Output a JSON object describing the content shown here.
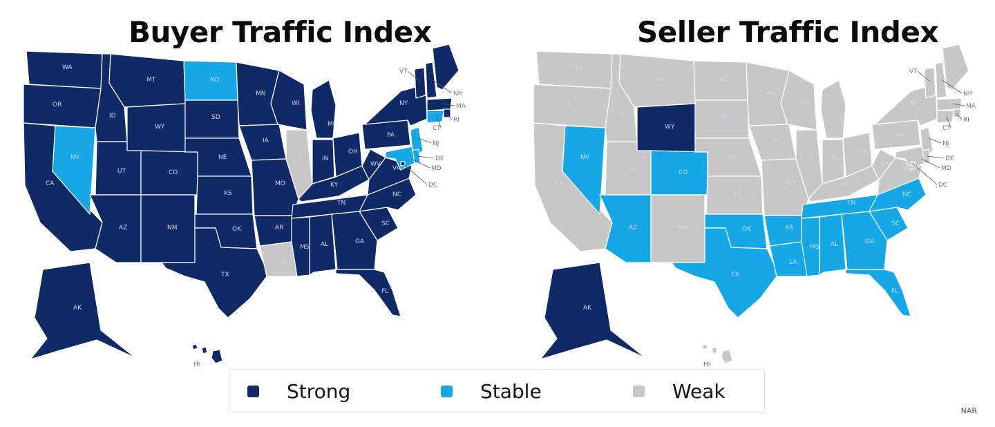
{
  "maps": [
    {
      "title": "Buyer Traffic Index",
      "states": {
        "WA": "strong",
        "OR": "strong",
        "CA": "strong",
        "ID": "strong",
        "NV": "stable",
        "MT": "strong",
        "WY": "strong",
        "UT": "strong",
        "AZ": "strong",
        "CO": "strong",
        "NM": "strong",
        "ND": "stable",
        "SD": "strong",
        "NE": "strong",
        "KS": "strong",
        "OK": "strong",
        "TX": "strong",
        "MN": "strong",
        "IA": "strong",
        "MO": "strong",
        "AR": "strong",
        "LA": "weak",
        "WI": "strong",
        "IL": "weak",
        "MI": "strong",
        "IN": "strong",
        "OH": "strong",
        "KY": "strong",
        "TN": "strong",
        "MS": "strong",
        "AL": "strong",
        "GA": "strong",
        "FL": "strong",
        "SC": "strong",
        "NC": "strong",
        "VA": "strong",
        "WV": "strong",
        "PA": "strong",
        "NY": "strong",
        "VT": "strong",
        "NH": "strong",
        "ME": "strong",
        "MA": "strong",
        "RI": "strong",
        "CT": "stable",
        "NJ": "stable",
        "DE": "stable",
        "MD": "stable",
        "DC": "strong",
        "AK": "strong",
        "HI": "strong"
      }
    },
    {
      "title": "Seller Traffic Index",
      "states": {
        "WA": "weak",
        "OR": "weak",
        "CA": "weak",
        "ID": "weak",
        "NV": "stable",
        "MT": "weak",
        "WY": "strong",
        "UT": "weak",
        "AZ": "stable",
        "CO": "stable",
        "NM": "weak",
        "ND": "weak",
        "SD": "weak",
        "NE": "weak",
        "KS": "weak",
        "OK": "stable",
        "TX": "stable",
        "MN": "weak",
        "IA": "weak",
        "MO": "weak",
        "AR": "stable",
        "LA": "stable",
        "WI": "weak",
        "IL": "weak",
        "MI": "weak",
        "IN": "weak",
        "OH": "weak",
        "KY": "weak",
        "TN": "stable",
        "MS": "stable",
        "AL": "stable",
        "GA": "stable",
        "FL": "stable",
        "SC": "stable",
        "NC": "stable",
        "VA": "weak",
        "WV": "weak",
        "PA": "weak",
        "NY": "weak",
        "VT": "weak",
        "NH": "weak",
        "ME": "weak",
        "MA": "weak",
        "RI": "weak",
        "CT": "weak",
        "NJ": "weak",
        "DE": "weak",
        "MD": "weak",
        "DC": "weak",
        "AK": "strong",
        "HI": "weak"
      }
    }
  ],
  "legend": [
    {
      "key": "strong",
      "label": "Strong",
      "color": "#0f2a66"
    },
    {
      "key": "stable",
      "label": "Stable",
      "color": "#16a7e6"
    },
    {
      "key": "weak",
      "label": "Weak",
      "color": "#c7c7c7"
    }
  ],
  "footer_mark": "NAR"
}
